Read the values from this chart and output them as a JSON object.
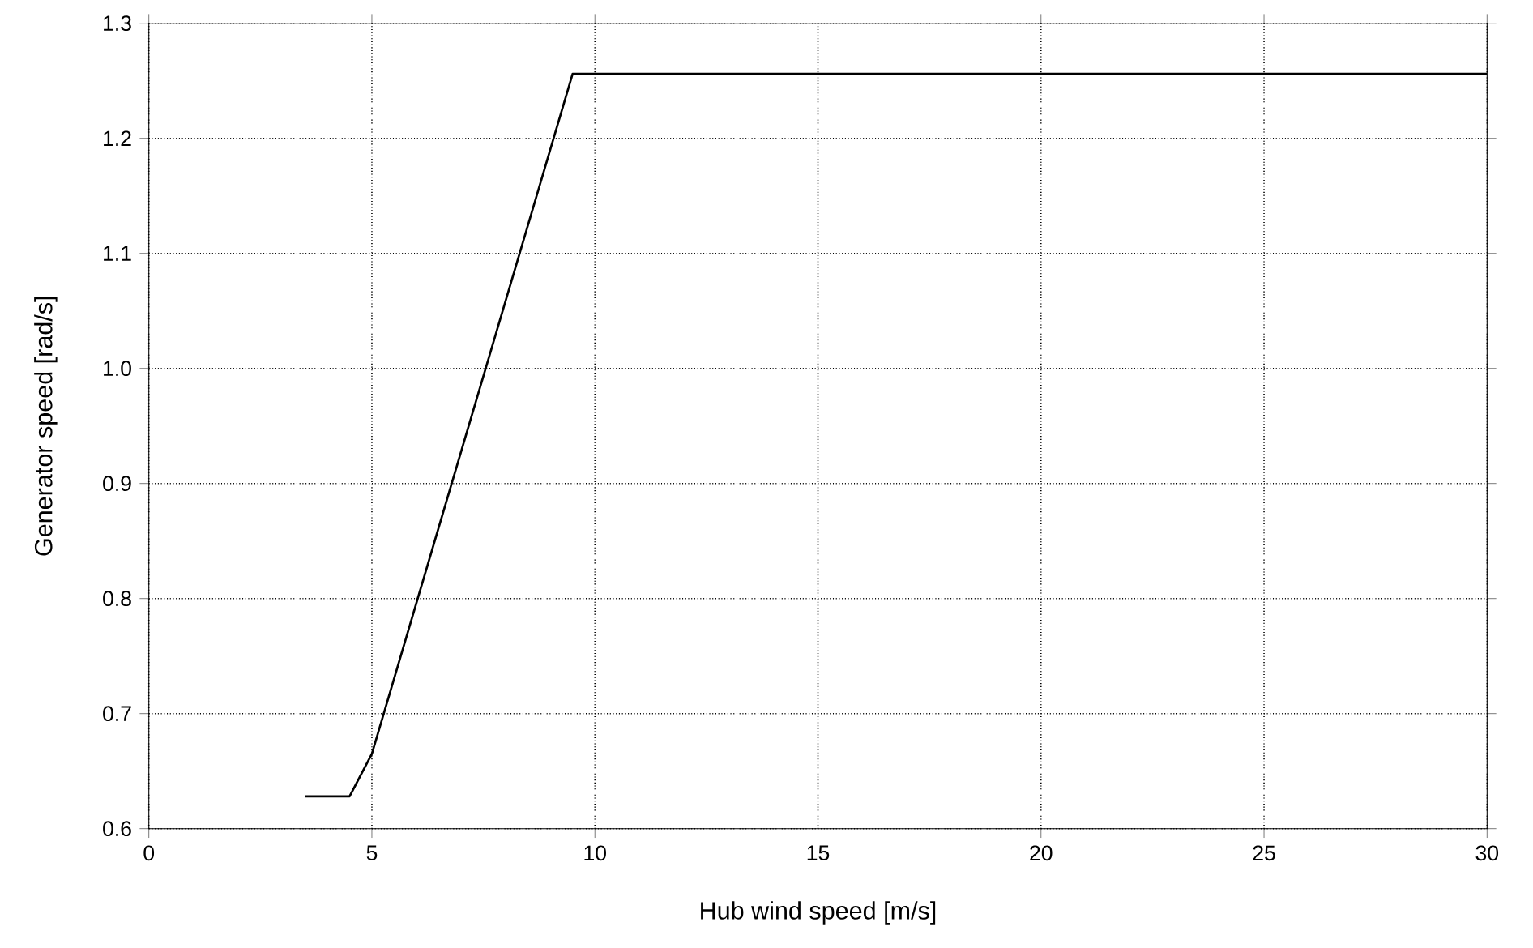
{
  "chart_data": {
    "type": "line",
    "xlabel": "Hub wind speed [m/s]",
    "ylabel": "Generator speed  [rad/s]",
    "x": [
      3.5,
      4.5,
      5,
      9.5,
      30
    ],
    "values": [
      0.628,
      0.628,
      0.665,
      1.256,
      1.256
    ],
    "color": "#000000",
    "xlim": [
      0,
      30
    ],
    "ylim": [
      0.6,
      1.3
    ],
    "xticks": [
      0,
      5,
      10,
      15,
      20,
      25,
      30
    ],
    "yticks": [
      {
        "value": 0.6,
        "label": "0.6"
      },
      {
        "value": 0.7,
        "label": "0.7"
      },
      {
        "value": 0.8,
        "label": "0.8"
      },
      {
        "value": 0.9,
        "label": "0.9"
      },
      {
        "value": 1.0,
        "label": "1.0"
      },
      {
        "value": 1.1,
        "label": "1.1"
      },
      {
        "value": 1.2,
        "label": "1.2"
      },
      {
        "value": 1.3,
        "label": "1.3"
      }
    ],
    "grid": true
  }
}
